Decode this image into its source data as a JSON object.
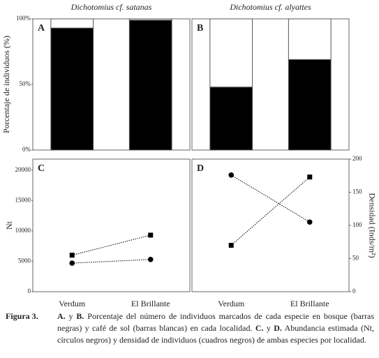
{
  "chart_data": [
    {
      "type": "bar",
      "title": "Dichotomius cf. satanas",
      "panel_label": "A",
      "ylabel": "Porcentaje de individuos (%)",
      "categories": [
        null,
        null
      ],
      "series": [
        {
          "color": "#000000",
          "values": [
            93,
            99
          ]
        },
        {
          "color": "#ffffff",
          "values": [
            7,
            1
          ]
        }
      ],
      "stacked": true,
      "ylim": [
        0,
        100
      ],
      "yticks": [
        {
          "value": 0,
          "label": "0%"
        },
        {
          "value": 50,
          "label": "50%"
        },
        {
          "value": 100,
          "label": "100%"
        }
      ]
    },
    {
      "type": "bar",
      "title": "Dichotomius cf. alyattes",
      "panel_label": "B",
      "categories": [
        null,
        null
      ],
      "series": [
        {
          "color": "#000000",
          "values": [
            48,
            69
          ]
        },
        {
          "color": "#ffffff",
          "values": [
            52,
            31
          ]
        }
      ],
      "stacked": true,
      "ylim": [
        0,
        100
      ]
    },
    {
      "type": "line",
      "panel_label": "C",
      "ylabel": "Nt",
      "categories": [
        "Verdum",
        "El Brillante"
      ],
      "series": [
        {
          "color": "#000000",
          "marker": "square",
          "values": [
            6000,
            9300
          ]
        },
        {
          "color": "#000000",
          "marker": "circle",
          "values": [
            4700,
            5300
          ]
        }
      ],
      "ylim": [
        0,
        21800
      ],
      "yticks": [
        0,
        5000,
        10000,
        15000,
        20000
      ]
    },
    {
      "type": "line",
      "panel_label": "D",
      "y2label": "Densidad (Inds/m²)",
      "categories": [
        "Verdum",
        "El Brillante"
      ],
      "series": [
        {
          "color": "#000000",
          "marker": "circle",
          "axis": "y2",
          "values": [
            176,
            105
          ]
        },
        {
          "color": "#000000",
          "marker": "square",
          "axis": "y2",
          "values": [
            70,
            173
          ]
        }
      ],
      "y2lim": [
        0,
        200
      ],
      "y2ticks": [
        0,
        50,
        100,
        150,
        200
      ]
    }
  ],
  "caption": {
    "label": "Figura 3.",
    "segments": [
      {
        "text": "A.",
        "bold": true
      },
      {
        "text": " y ",
        "bold": false
      },
      {
        "text": "B.",
        "bold": true
      },
      {
        "text": " Porcentaje del número de individuos marcados de cada especie en bosque (barras negras) y café de sol (barras blancas) en cada localidad. ",
        "bold": false
      },
      {
        "text": "C.",
        "bold": true
      },
      {
        "text": " y ",
        "bold": false
      },
      {
        "text": "D.",
        "bold": true
      },
      {
        "text": " Abundancia estimada (Nt, círculos negros) y densidad de individuos (cuadros negros) de ambas especies por localidad.",
        "bold": false
      }
    ]
  }
}
